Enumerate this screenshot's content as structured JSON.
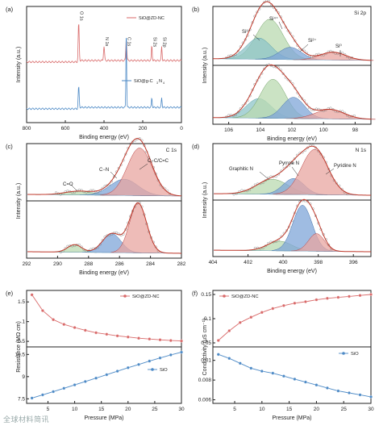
{
  "colors": {
    "red": "#d96a6a",
    "redDark": "#b83a3a",
    "blue": "#4d8ac6",
    "green": "#9cc98f",
    "teal": "#78b8c0",
    "fitRed": "#c0392b",
    "marker": "#777777",
    "axis": "#222222",
    "fillRed": "#e8a6a0",
    "fillBlue": "#7fa6d8",
    "fillGreen": "#b9d9b0",
    "fillTeal": "#8ec4c8"
  },
  "chart_data": [
    {
      "panel": "(a)",
      "type": "line",
      "xlabel": "Binding energy (eV)",
      "ylabel": "Intensity (a.u.)",
      "xlim": [
        800,
        0
      ],
      "xticks": [
        800,
        600,
        400,
        200,
        0
      ],
      "series": [
        {
          "name": "SiO@ZD-NC",
          "color": "red"
        },
        {
          "name": "SiO@g-C3N4",
          "color": "blue"
        }
      ],
      "peak_labels": [
        "O 1s",
        "N 1s",
        "C 1s",
        "Si 2s",
        "Si 2p"
      ],
      "legend": [
        "SiO@ZD-NC",
        "SiO@g-C",
        "3",
        "N",
        "4"
      ]
    },
    {
      "panel": "(b)",
      "type": "area",
      "title": "Si 2p",
      "xlabel": "Binding energy (eV)",
      "ylabel": "Intensity (a.u.)",
      "xlim": [
        107,
        97
      ],
      "xticks": [
        106,
        104,
        102,
        100,
        98
      ],
      "top": {
        "components": [
          {
            "label": "Si⁴⁺",
            "center": 103.4
          },
          {
            "label": "Si³⁺",
            "center": 104.1
          },
          {
            "label": "Si²⁺",
            "center": 102.1
          },
          {
            "label": "Si⁰",
            "center": 99.4
          }
        ]
      },
      "bottom": {
        "components": [
          {
            "center": 104.1
          },
          {
            "center": 103.2
          },
          {
            "center": 101.9
          },
          {
            "center": 99.6
          }
        ]
      }
    },
    {
      "panel": "(c)",
      "type": "area",
      "title": "C 1s",
      "xlabel": "Binding energy (eV)",
      "ylabel": "Intensity (a.u.)",
      "xlim": [
        292,
        282
      ],
      "xticks": [
        292,
        290,
        288,
        286,
        284,
        282
      ],
      "top": {
        "components": [
          {
            "label": "C=O",
            "center": 288.6
          },
          {
            "label": "C−N",
            "center": 285.7
          },
          {
            "label": "C−C/C=C",
            "center": 284.7
          }
        ]
      },
      "bottom": {
        "components": [
          {
            "center": 288.9
          },
          {
            "center": 286.5
          },
          {
            "center": 284.8
          }
        ]
      }
    },
    {
      "panel": "(d)",
      "type": "area",
      "title": "N 1s",
      "xlabel": "Binding energy (eV)",
      "ylabel": "Intensity (a.u.)",
      "xlim": [
        404,
        395
      ],
      "xticks": [
        404,
        402,
        400,
        398,
        396
      ],
      "top": {
        "components": [
          {
            "label": "Graphitic N",
            "center": 400.6
          },
          {
            "label": "Pyrrole N",
            "center": 399.4
          },
          {
            "label": "Pyridine N",
            "center": 398.2
          }
        ]
      },
      "bottom": {
        "components": [
          {
            "center": 400.2
          },
          {
            "center": 398.9
          },
          {
            "center": 398.1
          }
        ]
      }
    },
    {
      "panel": "(e)",
      "type": "line",
      "xlabel": "Pressure (MPa)",
      "ylabel": "Resistance (MΩ cm)",
      "xlim": [
        1,
        30
      ],
      "xticks": [
        5,
        10,
        15,
        20,
        25,
        30
      ],
      "top": {
        "name": "SiO@ZD-NC",
        "ylim": [
          0.4,
          1.75
        ],
        "yticks": [
          0.5,
          1.0,
          1.5
        ],
        "x": [
          2,
          4,
          6,
          8,
          10,
          12,
          14,
          16,
          18,
          20,
          22,
          24,
          26,
          28,
          30
        ],
        "y": [
          1.68,
          1.28,
          1.05,
          0.93,
          0.85,
          0.78,
          0.72,
          0.68,
          0.64,
          0.61,
          0.58,
          0.56,
          0.54,
          0.52,
          0.51
        ]
      },
      "bottom": {
        "name": "SiO",
        "ylim": [
          7.3,
          10.9
        ],
        "yticks": [
          7.5,
          9.0,
          10.5
        ],
        "x": [
          2,
          4,
          6,
          8,
          10,
          12,
          14,
          16,
          18,
          20,
          22,
          24,
          26,
          28,
          30
        ],
        "y": [
          7.55,
          7.77,
          7.99,
          8.21,
          8.44,
          8.67,
          8.9,
          9.13,
          9.37,
          9.6,
          9.82,
          10.05,
          10.26,
          10.47,
          10.65
        ]
      }
    },
    {
      "panel": "(f)",
      "type": "line",
      "xlabel": "Pressure (MPa)",
      "ylabel": "Conductivity (μS cm⁻¹)",
      "xlim": [
        1,
        30
      ],
      "xticks": [
        5,
        10,
        15,
        20,
        25,
        30
      ],
      "top": {
        "name": "SiO@ZD-NC",
        "ylim": [
          0.045,
          0.155
        ],
        "yticks": [
          0.05,
          0.1,
          0.15
        ],
        "x": [
          2,
          4,
          6,
          8,
          10,
          12,
          14,
          16,
          18,
          20,
          22,
          24,
          26,
          28,
          30
        ],
        "y": [
          0.055,
          0.075,
          0.092,
          0.103,
          0.113,
          0.121,
          0.127,
          0.132,
          0.135,
          0.139,
          0.142,
          0.144,
          0.146,
          0.148,
          0.15
        ]
      },
      "bottom": {
        "name": "SiO",
        "ylim": [
          0.0058,
          0.0112
        ],
        "yticks": [
          0.006,
          0.008,
          0.01
        ],
        "x": [
          2,
          4,
          6,
          8,
          10,
          12,
          14,
          16,
          18,
          20,
          22,
          24,
          26,
          28,
          30
        ],
        "y": [
          0.0106,
          0.0102,
          0.0097,
          0.0092,
          0.0089,
          0.0087,
          0.0084,
          0.0081,
          0.0078,
          0.0075,
          0.0072,
          0.0069,
          0.0067,
          0.0065,
          0.0063
        ]
      }
    }
  ],
  "watermark": "全球材料简讯"
}
